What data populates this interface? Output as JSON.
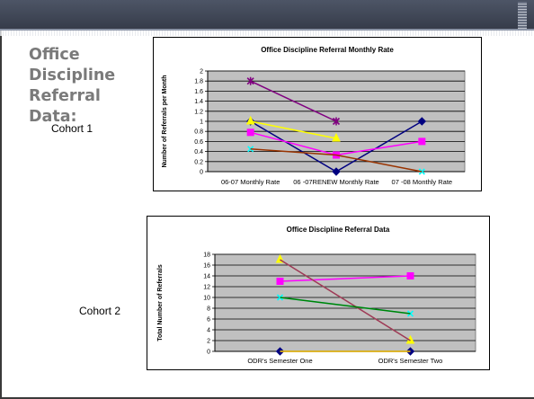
{
  "slide": {
    "title": "Office\nDiscipline\nReferral\nData:",
    "cohort1_label": "Cohort 1",
    "cohort2_label": "Cohort 2"
  },
  "chart_data": [
    {
      "type": "line",
      "title": "Office Discipline Referral Monthly Rate",
      "ylabel": "Number of Referrals per Month",
      "xlabel": "",
      "categories": [
        "06-07 Monthly Rate",
        "06 -07RENEW Monthly Rate",
        "07 -08 Monthly Rate"
      ],
      "ylim": [
        0,
        2
      ],
      "yticks": [
        "0",
        "0.2",
        "0.4",
        "0.6",
        "0.8",
        "1",
        "1.2",
        "1.4",
        "1.6",
        "1.8",
        "2"
      ],
      "grid": true,
      "plot_background": "#c0c0c0",
      "legend": "none",
      "series": [
        {
          "color": "#000080",
          "marker": "diamond",
          "values": [
            1.0,
            0.0,
            1.0
          ]
        },
        {
          "color": "#ff00ff",
          "marker": "square",
          "values": [
            0.78,
            0.33,
            0.6
          ]
        },
        {
          "color": "#ffff00",
          "marker": "triangle",
          "values": [
            1.0,
            0.66,
            null
          ]
        },
        {
          "color": "#00ffff",
          "marker": "x",
          "values": [
            0.45,
            null,
            0.0
          ]
        },
        {
          "color": "#800080",
          "marker": "star",
          "values": [
            1.8,
            1.0,
            null
          ]
        },
        {
          "color": "#993300",
          "marker": "none",
          "values": [
            0.45,
            0.33,
            0.0
          ]
        }
      ]
    },
    {
      "type": "line",
      "title": "Office Discipline Referral Data",
      "ylabel": "Total Number of Referrals",
      "xlabel": "",
      "categories": [
        "ODR's Semester One",
        "ODR's Semester Two"
      ],
      "ylim": [
        0,
        18
      ],
      "yticks": [
        "0",
        "2",
        "4",
        "6",
        "8",
        "10",
        "12",
        "14",
        "16",
        "18"
      ],
      "grid": true,
      "plot_background": "#c0c0c0",
      "legend": "none",
      "series": [
        {
          "color": "#000080",
          "marker": "diamond",
          "values": [
            0,
            0
          ]
        },
        {
          "color": "#ff00ff",
          "marker": "square",
          "values": [
            13,
            14
          ]
        },
        {
          "color": "#ffff00",
          "marker": "triangle",
          "values": [
            17,
            2
          ]
        },
        {
          "color": "#ffcc00",
          "marker": "none",
          "values": [
            0,
            0
          ]
        },
        {
          "color": "#00ffff",
          "marker": "x",
          "values": [
            10,
            7
          ]
        },
        {
          "color": "#993366",
          "marker": "none",
          "values": [
            17,
            2
          ]
        },
        {
          "color": "#008000",
          "marker": "none",
          "values": [
            10,
            7
          ]
        }
      ]
    }
  ]
}
